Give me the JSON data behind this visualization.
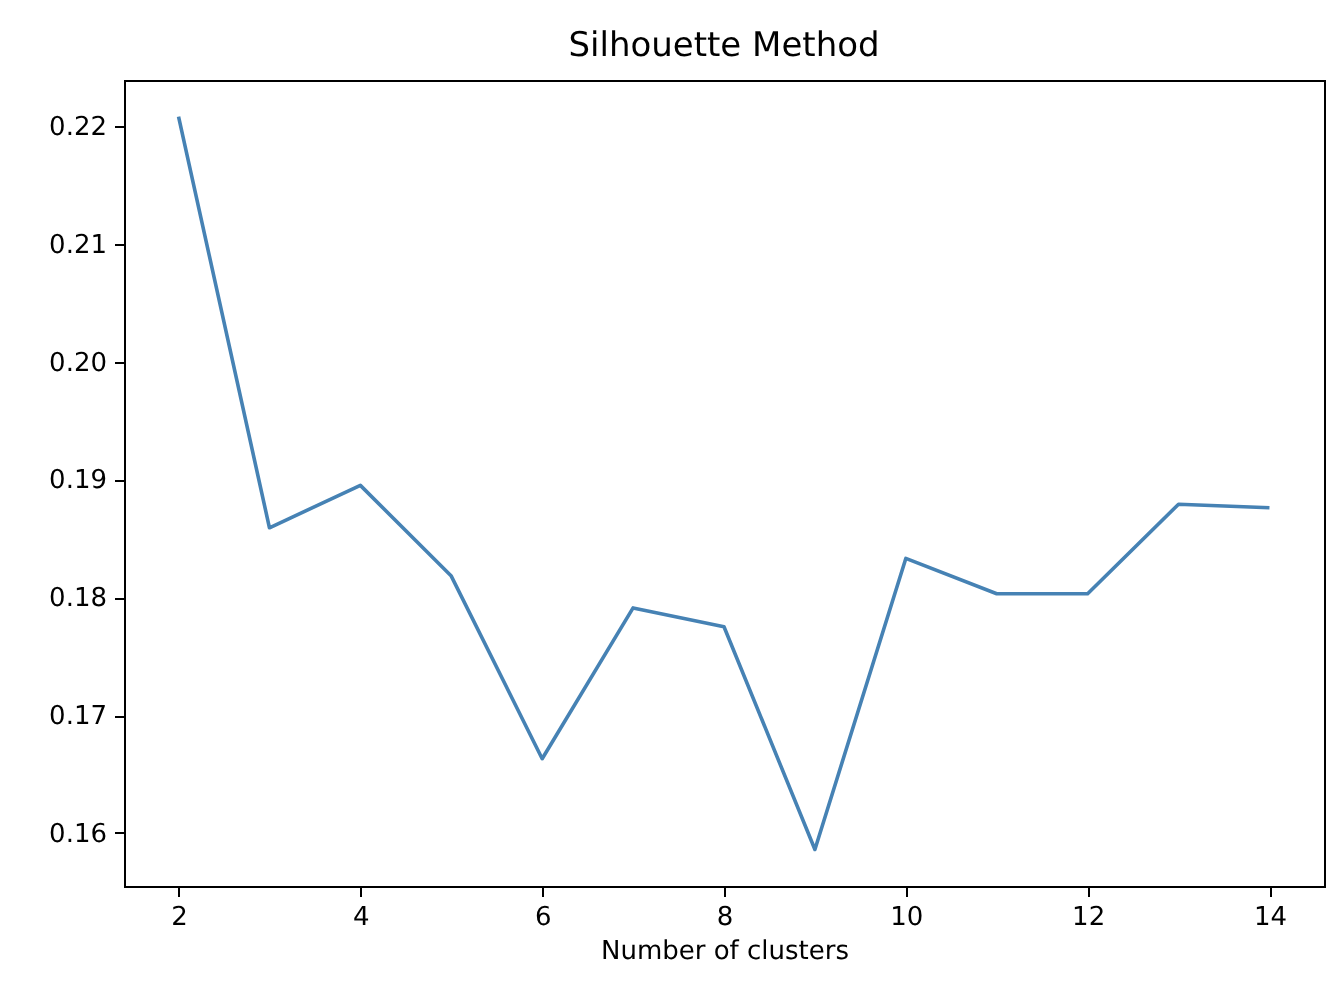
{
  "chart_data": {
    "type": "line",
    "title": "Silhouette Method",
    "xlabel": "Number of clusters",
    "x": [
      2,
      3,
      4,
      5,
      6,
      7,
      8,
      9,
      10,
      11,
      12,
      13,
      14
    ],
    "series": [
      {
        "color": "#4682b4",
        "values": [
          0.2208,
          0.1859,
          0.1895,
          0.1818,
          0.1663,
          0.1791,
          0.1775,
          0.1586,
          0.1833,
          0.1803,
          0.1803,
          0.1879,
          0.1876
        ]
      }
    ],
    "xlim": [
      1.4,
      14.6
    ],
    "xticks": [
      2,
      4,
      6,
      8,
      10,
      12,
      14
    ],
    "ylim": [
      0.1555,
      0.2239
    ],
    "yticks": [
      {
        "value": 0.16,
        "label": "0.16"
      },
      {
        "value": 0.17,
        "label": "0.17"
      },
      {
        "value": 0.18,
        "label": "0.18"
      },
      {
        "value": 0.19,
        "label": "0.19"
      },
      {
        "value": 0.2,
        "label": "0.20"
      },
      {
        "value": 0.21,
        "label": "0.21"
      },
      {
        "value": 0.22,
        "label": "0.22"
      }
    ],
    "grid": false,
    "line_style": "solid"
  }
}
